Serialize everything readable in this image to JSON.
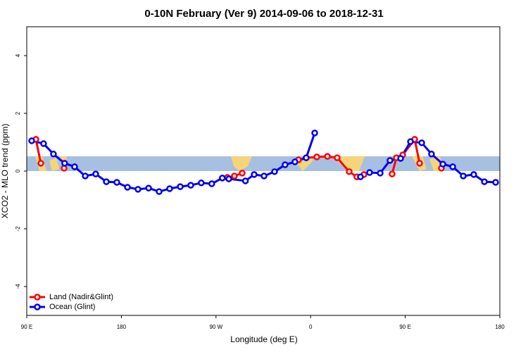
{
  "chart_data": {
    "type": "line",
    "title": "0-10N February (Ver 9)   2014-09-06 to 2018-12-31",
    "x_label": "Longitude (deg E)",
    "y_label": "XCO2 - MLO trend (ppm)",
    "xlim": [
      90,
      540
    ],
    "xticks": [
      {
        "value": 90,
        "label": "90 E"
      },
      180,
      {
        "value": 270,
        "label": "90 W"
      },
      {
        "value": 360,
        "label": "0"
      },
      {
        "value": 450,
        "label": "90 E"
      },
      {
        "value": 540,
        "label": "180"
      }
    ],
    "ylim": [
      -5,
      5
    ],
    "yticks": [
      -4,
      -2,
      0,
      2,
      4
    ],
    "legend": "bottom-left",
    "series": [
      {
        "name": "Land (Nadir&Glint)",
        "color": "#ff0000",
        "x": [
          98.7,
          103.4,
          null,
          125.5,
          null,
          280.8,
          287.5,
          294.9,
          null,
          348.5,
          355.8,
          365.9,
          376,
          385.3,
          396.7,
          404,
          410.8,
          null,
          437.5,
          441.6,
          447.6,
          459,
          463.7,
          null,
          484.4
        ],
        "values": [
          1.1,
          0.27,
          null,
          0.1,
          null,
          -0.22,
          -0.17,
          -0.07,
          null,
          0.39,
          0.46,
          0.49,
          0.51,
          0.46,
          -0.02,
          -0.2,
          -0.12,
          null,
          -0.1,
          0.46,
          0.56,
          1.1,
          0.27,
          null,
          0.1
        ]
      },
      {
        "name": "Ocean (Glint)",
        "color": "#0000ee",
        "x": [
          94.7,
          106,
          115.4,
          126,
          135.5,
          145.6,
          155.6,
          165.7,
          175.7,
          185.8,
          195.8,
          205.9,
          215.9,
          225.9,
          236,
          246,
          256,
          266,
          276,
          282.2,
          298,
          306.3,
          315.7,
          325.7,
          335.7,
          345.1,
          355.8,
          363.9,
          null,
          407.4,
          416.1,
          426.2,
          435.5,
          445.6,
          455,
          465.7,
          475,
          485.8,
          495.2,
          505.2,
          515.2,
          525.3,
          536
        ],
        "values": [
          1.05,
          0.95,
          0.59,
          0.27,
          0.15,
          -0.17,
          -0.1,
          -0.37,
          -0.39,
          -0.56,
          -0.63,
          -0.59,
          -0.71,
          -0.61,
          -0.54,
          -0.49,
          -0.41,
          -0.44,
          -0.24,
          -0.27,
          -0.34,
          -0.12,
          -0.17,
          -0.02,
          0.22,
          0.32,
          0.46,
          1.32,
          null,
          -0.2,
          -0.05,
          -0.07,
          0.37,
          0.44,
          1.02,
          0.98,
          0.59,
          0.24,
          0.15,
          -0.17,
          -0.12,
          -0.37,
          -0.39
        ]
      }
    ]
  }
}
